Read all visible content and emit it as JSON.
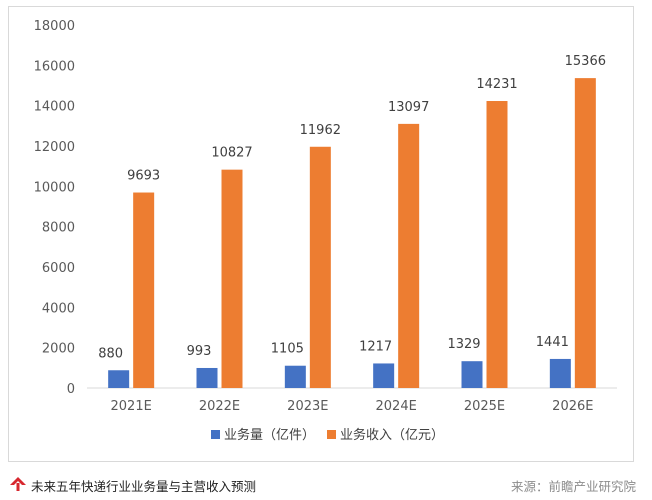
{
  "chart_data": {
    "type": "bar",
    "title": "",
    "categories": [
      "2021E",
      "2022E",
      "2023E",
      "2024E",
      "2025E",
      "2026E"
    ],
    "series": [
      {
        "name": "业务量（亿件）",
        "color": "#4472C4",
        "values": [
          880,
          993,
          1105,
          1217,
          1329,
          1441
        ]
      },
      {
        "name": "业务收入（亿元）",
        "color": "#ED7D31",
        "values": [
          9693,
          10827,
          11962,
          13097,
          14231,
          15366
        ]
      }
    ],
    "ylim": [
      0,
      18000
    ],
    "yticks": [
      0,
      2000,
      4000,
      6000,
      8000,
      10000,
      12000,
      14000,
      16000,
      18000
    ],
    "xlabel": "",
    "ylabel": "",
    "grid": false,
    "legend": "bottom"
  },
  "footer": {
    "title": "未来五年快递行业业务量与主营收入预测",
    "source": "来源：前瞻产业研究院",
    "logo_icon": "qianzhan-logo-icon",
    "logo_color": "#d7282f"
  }
}
